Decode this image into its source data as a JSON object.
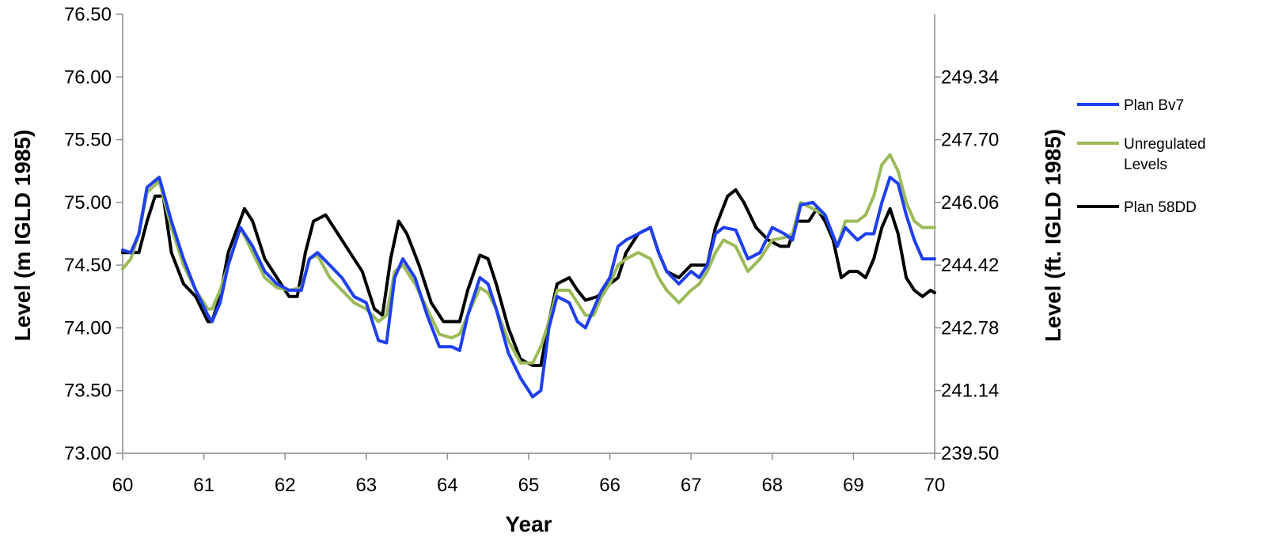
{
  "chart_data": {
    "type": "line",
    "title": "",
    "xlabel": "Year",
    "ylabel": "Level (m IGLD 1985)",
    "ylabel_right": "Level (ft. IGLD 1985)",
    "xlim": [
      60,
      70
    ],
    "ylim": [
      73.0,
      76.5
    ],
    "y2lim": [
      239.5,
      250.98
    ],
    "x_ticks": [
      "60",
      "61",
      "62",
      "63",
      "64",
      "65",
      "66",
      "67",
      "68",
      "69",
      "70"
    ],
    "y_ticks": [
      "73.00",
      "73.50",
      "74.00",
      "74.50",
      "75.00",
      "75.50",
      "76.00",
      "76.50"
    ],
    "y2_ticks": [
      "239.50",
      "241.14",
      "242.78",
      "244.42",
      "246.06",
      "247.70",
      "249.34"
    ],
    "grid": false,
    "legend_position": "right",
    "legend": [
      "Plan Bv7",
      "Unregulated Levels",
      "Plan 58DD"
    ],
    "series": [
      {
        "name": "Plan Bv7",
        "color": "#1f3ff0",
        "x": [
          60.0,
          60.1,
          60.2,
          60.3,
          60.45,
          60.6,
          60.75,
          60.9,
          61.05,
          61.1,
          61.2,
          61.3,
          61.45,
          61.6,
          61.75,
          61.9,
          62.05,
          62.2,
          62.3,
          62.4,
          62.55,
          62.7,
          62.85,
          63.0,
          63.15,
          63.25,
          63.35,
          63.45,
          63.6,
          63.75,
          63.9,
          64.05,
          64.15,
          64.25,
          64.4,
          64.5,
          64.6,
          64.75,
          64.9,
          65.05,
          65.15,
          65.25,
          65.35,
          65.5,
          65.6,
          65.7,
          65.8,
          65.9,
          66.0,
          66.1,
          66.2,
          66.35,
          66.5,
          66.6,
          66.7,
          66.85,
          67.0,
          67.1,
          67.2,
          67.3,
          67.4,
          67.55,
          67.7,
          67.85,
          68.0,
          68.15,
          68.25,
          68.35,
          68.5,
          68.65,
          68.8,
          68.9,
          69.05,
          69.15,
          69.25,
          69.35,
          69.45,
          69.55,
          69.65,
          69.75,
          69.85,
          69.95,
          70.0
        ],
        "values": [
          74.62,
          74.6,
          74.75,
          75.12,
          75.2,
          74.85,
          74.55,
          74.3,
          74.1,
          74.05,
          74.2,
          74.5,
          74.8,
          74.65,
          74.45,
          74.35,
          74.3,
          74.3,
          74.55,
          74.6,
          74.5,
          74.4,
          74.25,
          74.2,
          73.9,
          73.88,
          74.4,
          74.55,
          74.4,
          74.1,
          73.85,
          73.85,
          73.82,
          74.1,
          74.4,
          74.35,
          74.15,
          73.8,
          73.6,
          73.45,
          73.5,
          74.0,
          74.25,
          74.2,
          74.05,
          74.0,
          74.15,
          74.3,
          74.4,
          74.65,
          74.7,
          74.75,
          74.8,
          74.6,
          74.45,
          74.35,
          74.45,
          74.4,
          74.5,
          74.75,
          74.8,
          74.78,
          74.55,
          74.6,
          74.8,
          74.75,
          74.7,
          74.98,
          75.0,
          74.9,
          74.65,
          74.8,
          74.7,
          74.75,
          74.75,
          75.0,
          75.2,
          75.15,
          74.9,
          74.7,
          74.55,
          74.55,
          74.55
        ]
      },
      {
        "name": "Unregulated Levels",
        "color": "#9bbb59",
        "x": [
          60.0,
          60.1,
          60.2,
          60.3,
          60.45,
          60.6,
          60.75,
          60.9,
          61.05,
          61.1,
          61.2,
          61.3,
          61.45,
          61.6,
          61.75,
          61.9,
          62.05,
          62.2,
          62.3,
          62.4,
          62.55,
          62.7,
          62.85,
          63.0,
          63.15,
          63.25,
          63.35,
          63.45,
          63.6,
          63.75,
          63.9,
          64.05,
          64.15,
          64.25,
          64.4,
          64.5,
          64.6,
          64.75,
          64.9,
          65.05,
          65.15,
          65.25,
          65.35,
          65.5,
          65.6,
          65.7,
          65.8,
          65.9,
          66.0,
          66.1,
          66.2,
          66.35,
          66.5,
          66.6,
          66.7,
          66.85,
          67.0,
          67.1,
          67.2,
          67.3,
          67.4,
          67.55,
          67.7,
          67.85,
          68.0,
          68.15,
          68.25,
          68.35,
          68.5,
          68.65,
          68.8,
          68.9,
          69.05,
          69.15,
          69.25,
          69.35,
          69.45,
          69.55,
          69.65,
          69.75,
          69.85,
          69.95,
          70.0
        ],
        "values": [
          74.47,
          74.55,
          74.75,
          75.08,
          75.17,
          74.8,
          74.5,
          74.3,
          74.15,
          74.15,
          74.3,
          74.5,
          74.8,
          74.6,
          74.4,
          74.32,
          74.3,
          74.32,
          74.55,
          74.58,
          74.4,
          74.3,
          74.2,
          74.15,
          74.05,
          74.1,
          74.45,
          74.5,
          74.35,
          74.15,
          73.95,
          73.92,
          73.95,
          74.1,
          74.32,
          74.28,
          74.15,
          73.9,
          73.72,
          73.72,
          73.85,
          74.05,
          74.3,
          74.3,
          74.2,
          74.1,
          74.1,
          74.25,
          74.35,
          74.5,
          74.55,
          74.6,
          74.55,
          74.4,
          74.3,
          74.2,
          74.3,
          74.35,
          74.45,
          74.6,
          74.7,
          74.65,
          74.45,
          74.55,
          74.7,
          74.72,
          74.75,
          75.0,
          74.95,
          74.9,
          74.65,
          74.85,
          74.85,
          74.9,
          75.05,
          75.3,
          75.38,
          75.25,
          75.0,
          74.85,
          74.8,
          74.8,
          74.8
        ]
      },
      {
        "name": "Plan 58DD",
        "color": "#000000",
        "x": [
          60.0,
          60.1,
          60.2,
          60.3,
          60.4,
          60.5,
          60.6,
          60.75,
          60.9,
          61.05,
          61.1,
          61.2,
          61.3,
          61.5,
          61.6,
          61.75,
          61.9,
          62.05,
          62.15,
          62.25,
          62.35,
          62.5,
          62.65,
          62.8,
          62.95,
          63.1,
          63.2,
          63.3,
          63.4,
          63.5,
          63.65,
          63.8,
          63.95,
          64.05,
          64.15,
          64.25,
          64.4,
          64.5,
          64.6,
          64.75,
          64.9,
          65.05,
          65.15,
          65.25,
          65.35,
          65.5,
          65.6,
          65.7,
          65.85,
          66.0,
          66.1,
          66.2,
          66.35,
          66.5,
          66.6,
          66.7,
          66.85,
          67.0,
          67.1,
          67.2,
          67.3,
          67.45,
          67.55,
          67.65,
          67.8,
          67.95,
          68.1,
          68.2,
          68.3,
          68.45,
          68.55,
          68.65,
          68.75,
          68.85,
          68.95,
          69.05,
          69.15,
          69.25,
          69.35,
          69.45,
          69.55,
          69.65,
          69.75,
          69.85,
          69.95,
          70.0
        ],
        "values": [
          74.6,
          74.6,
          74.6,
          74.85,
          75.05,
          75.05,
          74.6,
          74.35,
          74.25,
          74.05,
          74.05,
          74.25,
          74.6,
          74.95,
          74.85,
          74.55,
          74.4,
          74.25,
          74.25,
          74.6,
          74.85,
          74.9,
          74.75,
          74.6,
          74.45,
          74.15,
          74.1,
          74.55,
          74.85,
          74.75,
          74.5,
          74.2,
          74.05,
          74.05,
          74.05,
          74.3,
          74.58,
          74.55,
          74.35,
          74.0,
          73.75,
          73.7,
          73.7,
          74.05,
          74.35,
          74.4,
          74.3,
          74.22,
          74.25,
          74.35,
          74.4,
          74.6,
          74.75,
          74.8,
          74.6,
          74.45,
          74.4,
          74.5,
          74.5,
          74.5,
          74.8,
          75.05,
          75.1,
          75.0,
          74.8,
          74.7,
          74.65,
          74.65,
          74.85,
          74.85,
          74.95,
          74.85,
          74.7,
          74.4,
          74.45,
          74.45,
          74.4,
          74.55,
          74.8,
          74.95,
          74.75,
          74.4,
          74.3,
          74.25,
          74.3,
          74.28
        ]
      }
    ]
  }
}
